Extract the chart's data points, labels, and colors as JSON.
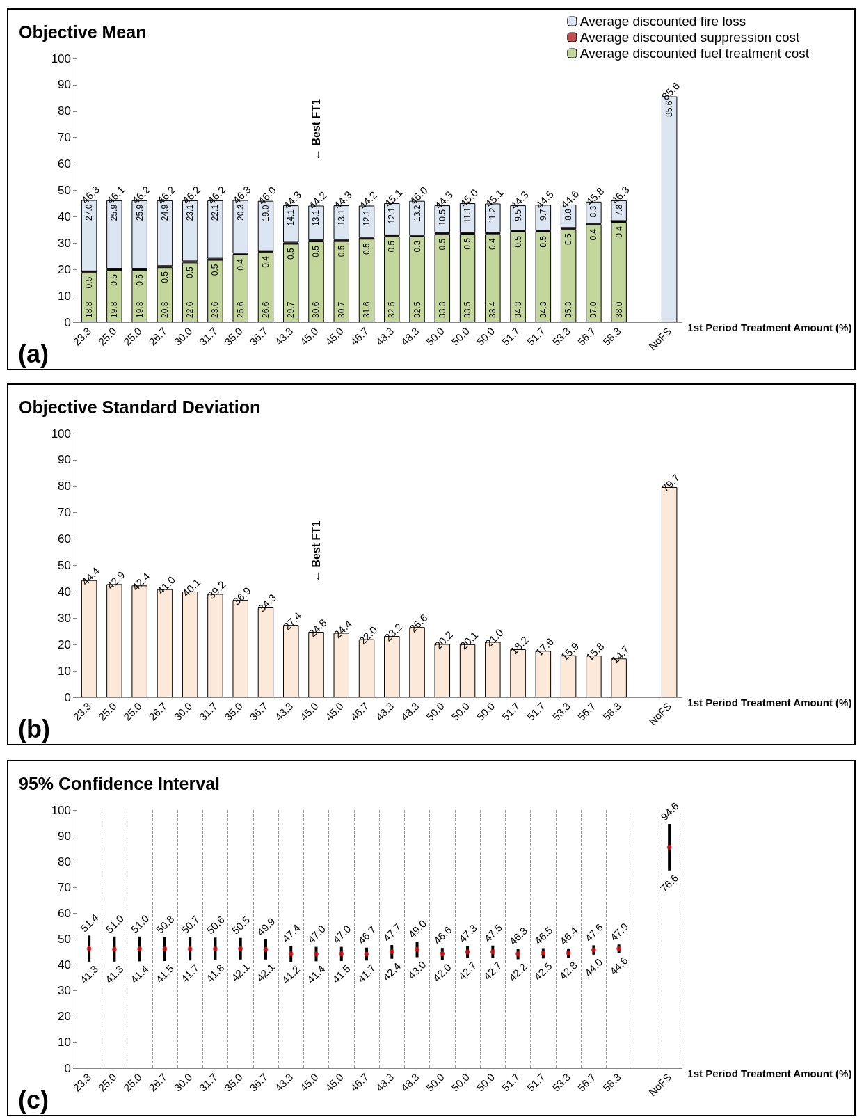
{
  "chart_data": [
    {
      "type": "bar",
      "title": "Objective Mean",
      "xlabel": "1st Period Treatment Amount (%)",
      "stacked": true,
      "legend": "top right",
      "grid": false,
      "categories": [
        "23.3",
        "25.0",
        "25.0",
        "26.7",
        "30.0",
        "31.7",
        "35.0",
        "36.7",
        "43.3",
        "45.0",
        "45.0",
        "46.7",
        "48.3",
        "48.3",
        "50.0",
        "50.0",
        "50.0",
        "51.7",
        "51.7",
        "53.3",
        "56.7",
        "58.3",
        null,
        "NoFS"
      ],
      "series": [
        {
          "name": "Average discounted fuel treatment cost",
          "color": "#c3d69b",
          "values": [
            18.8,
            19.8,
            19.8,
            20.8,
            22.6,
            23.6,
            25.6,
            26.6,
            29.7,
            30.6,
            30.7,
            31.6,
            32.5,
            32.5,
            33.3,
            33.5,
            33.4,
            34.3,
            34.3,
            35.3,
            37.0,
            38.0,
            null,
            null
          ],
          "value_labels": [
            "18.8",
            "19.8",
            "19.8",
            "20.8",
            "22.6",
            "23.6",
            "25.6",
            "26.6",
            "29.7",
            "30.6",
            "30.7",
            "31.6",
            "32.5",
            "32.5",
            "33.3",
            "33.5",
            "33.4",
            "34.3",
            "34.3",
            "35.3",
            "37.0",
            "38.0",
            null,
            null
          ]
        },
        {
          "name": "Average discounted suppression cost",
          "color": "#c0504d",
          "values": [
            0.5,
            0.5,
            0.5,
            0.5,
            0.5,
            0.5,
            0.4,
            0.4,
            0.5,
            0.5,
            0.5,
            0.5,
            0.5,
            0.3,
            0.5,
            0.5,
            0.4,
            0.5,
            0.5,
            0.5,
            0.4,
            0.4,
            null,
            null
          ],
          "value_labels": [
            "0.5",
            "0.5",
            "0.5",
            "0.5",
            "0.5",
            "0.5",
            "0.4",
            "0.4",
            "0.5",
            "0.5",
            "0.5",
            "0.5",
            "0.5",
            "0.3",
            "0.5",
            "0.5",
            "0.4",
            "0.5",
            "0.5",
            "0.5",
            "0.4",
            "0.4",
            null,
            null
          ]
        },
        {
          "name": "Average discounted fire loss",
          "color": "#dce6f2",
          "values": [
            27.0,
            25.9,
            25.9,
            24.9,
            23.1,
            22.1,
            20.3,
            19.0,
            14.1,
            13.1,
            13.1,
            12.1,
            12.1,
            13.2,
            10.5,
            11.1,
            11.2,
            9.5,
            9.7,
            8.8,
            8.3,
            7.8,
            null,
            85.6
          ],
          "value_labels": [
            "27.0",
            "25.9",
            "25.9",
            "24.9",
            "23.1",
            "22.1",
            "20.3",
            "19.0",
            "14.1",
            "13.1",
            "13.1",
            "12.1",
            "12.1",
            "13.2",
            "10.5",
            "11.1",
            "11.2",
            "9.5",
            "9.7",
            "8.8",
            "8.3",
            "7.8",
            null,
            "85.6"
          ]
        }
      ],
      "totals": [
        "46.3",
        "46.1",
        "46.2",
        "46.2",
        "46.2",
        "46.2",
        "46.3",
        "46.0",
        "44.3",
        "44.2",
        "44.3",
        "44.2",
        "45.1",
        "46.0",
        "44.3",
        "45.0",
        "45.1",
        "44.3",
        "44.5",
        "44.6",
        "45.8",
        "46.3",
        null,
        "85.6"
      ],
      "ylim": [
        0,
        100
      ],
      "yticks": [
        0,
        10,
        20,
        30,
        40,
        50,
        60,
        70,
        80,
        90,
        100
      ],
      "annotations": [
        "← Best FT1",
        "(a)"
      ]
    },
    {
      "type": "bar",
      "title": "Objective Standard Deviation",
      "xlabel": "1st Period Treatment Amount (%)",
      "grid": false,
      "categories": [
        "23.3",
        "25.0",
        "25.0",
        "26.7",
        "30.0",
        "31.7",
        "35.0",
        "36.7",
        "43.3",
        "45.0",
        "45.0",
        "46.7",
        "48.3",
        "48.3",
        "50.0",
        "50.0",
        "50.0",
        "51.7",
        "51.7",
        "53.3",
        "56.7",
        "58.3",
        null,
        "NoFS"
      ],
      "series": [
        {
          "color": "#fde9d9",
          "values": [
            44.4,
            42.9,
            42.4,
            41.0,
            40.1,
            39.2,
            36.9,
            34.3,
            27.4,
            24.8,
            24.4,
            22.0,
            23.2,
            26.6,
            20.2,
            20.1,
            21.0,
            18.2,
            17.6,
            15.9,
            15.8,
            14.7,
            null,
            79.7
          ],
          "value_labels": [
            "44.4",
            "42.9",
            "42.4",
            "41.0",
            "40.1",
            "39.2",
            "36.9",
            "34.3",
            "27.4",
            "24.8",
            "24.4",
            "22.0",
            "23.2",
            "26.6",
            "20.2",
            "20.1",
            "21.0",
            "18.2",
            "17.6",
            "15.9",
            "15.8",
            "14.7",
            null,
            "79.7"
          ]
        }
      ],
      "ylim": [
        0,
        100
      ],
      "yticks": [
        0,
        10,
        20,
        30,
        40,
        50,
        60,
        70,
        80,
        90,
        100
      ],
      "annotations": [
        "← Best FT1",
        "(b)"
      ]
    },
    {
      "type": "scatter",
      "title": "95% Confidence Interval",
      "xlabel": "1st Period Treatment Amount (%)",
      "grid": "x",
      "marker": "circle",
      "categories": [
        "23.3",
        "25.0",
        "25.0",
        "26.7",
        "30.0",
        "31.7",
        "35.0",
        "36.7",
        "43.3",
        "45.0",
        "45.0",
        "46.7",
        "48.3",
        "48.3",
        "50.0",
        "50.0",
        "50.0",
        "51.7",
        "51.7",
        "53.3",
        "56.7",
        "58.3",
        null,
        "NoFS"
      ],
      "series": [
        {
          "color": "#e8141a",
          "values": [
            46.3,
            46.1,
            46.2,
            46.2,
            46.2,
            46.2,
            46.3,
            46.0,
            44.3,
            44.2,
            44.3,
            44.2,
            45.1,
            46.0,
            44.3,
            45.0,
            45.1,
            44.3,
            44.5,
            44.6,
            45.8,
            46.3,
            null,
            85.6
          ],
          "errors": [
            [
              41.3,
              51.4
            ],
            [
              41.3,
              51.0
            ],
            [
              41.4,
              51.0
            ],
            [
              41.5,
              50.8
            ],
            [
              41.7,
              50.7
            ],
            [
              41.8,
              50.6
            ],
            [
              42.1,
              50.5
            ],
            [
              42.1,
              49.9
            ],
            [
              41.2,
              47.4
            ],
            [
              41.4,
              47.0
            ],
            [
              41.5,
              47.0
            ],
            [
              41.7,
              46.7
            ],
            [
              42.4,
              47.7
            ],
            [
              43.0,
              49.0
            ],
            [
              42.0,
              46.6
            ],
            [
              42.7,
              47.3
            ],
            [
              42.7,
              47.5
            ],
            [
              42.2,
              46.3
            ],
            [
              42.5,
              46.5
            ],
            [
              42.8,
              46.4
            ],
            [
              44.0,
              47.6
            ],
            [
              44.6,
              47.9
            ],
            null,
            [
              76.6,
              94.6
            ]
          ]
        }
      ],
      "ylim": [
        0,
        100
      ],
      "yticks": [
        0,
        10,
        20,
        30,
        40,
        50,
        60,
        70,
        80,
        90,
        100
      ],
      "annotations": [
        {
          "text": "51.4",
          "x": "23.3",
          "y": 51.4
        },
        {
          "text": "41.3",
          "x": "23.3",
          "y": 41.3
        },
        {
          "text": "51.0",
          "x": "25.0",
          "y": 51.0
        },
        {
          "text": "41.3",
          "x": "25.0",
          "y": 41.3
        },
        {
          "text": "51.0",
          "x": "25.0",
          "y": 51.0
        },
        {
          "text": "41.4",
          "x": "25.0",
          "y": 41.4
        },
        {
          "text": "50.8",
          "x": "26.7",
          "y": 50.8
        },
        {
          "text": "41.5",
          "x": "26.7",
          "y": 41.5
        },
        {
          "text": "50.7",
          "x": "30.0",
          "y": 50.7
        },
        {
          "text": "41.7",
          "x": "30.0",
          "y": 41.7
        },
        {
          "text": "50.6",
          "x": "31.7",
          "y": 50.6
        },
        {
          "text": "41.8",
          "x": "31.7",
          "y": 41.8
        },
        {
          "text": "50.5",
          "x": "35.0",
          "y": 50.5
        },
        {
          "text": "42.1",
          "x": "35.0",
          "y": 42.1
        },
        {
          "text": "49.9",
          "x": "36.7",
          "y": 49.9
        },
        {
          "text": "42.1",
          "x": "36.7",
          "y": 42.1
        },
        {
          "text": "47.4",
          "x": "43.3",
          "y": 47.4
        },
        {
          "text": "41.2",
          "x": "43.3",
          "y": 41.2
        },
        {
          "text": "47.0",
          "x": "45.0",
          "y": 47.0
        },
        {
          "text": "41.4",
          "x": "45.0",
          "y": 41.4
        },
        {
          "text": "47.0",
          "x": "45.0",
          "y": 47.0
        },
        {
          "text": "41.5",
          "x": "45.0",
          "y": 41.5
        },
        {
          "text": "46.7",
          "x": "46.7",
          "y": 46.7
        },
        {
          "text": "41.7",
          "x": "46.7",
          "y": 41.7
        },
        {
          "text": "47.7",
          "x": "48.3",
          "y": 47.7
        },
        {
          "text": "42.4",
          "x": "48.3",
          "y": 42.4
        },
        {
          "text": "49.0",
          "x": "48.3",
          "y": 49.0
        },
        {
          "text": "43.0",
          "x": "48.3",
          "y": 43.0
        },
        {
          "text": "46.6",
          "x": "50.0",
          "y": 46.6
        },
        {
          "text": "42.0",
          "x": "50.0",
          "y": 42.0
        },
        {
          "text": "47.3",
          "x": "50.0",
          "y": 47.3
        },
        {
          "text": "42.7",
          "x": "50.0",
          "y": 42.7
        },
        {
          "text": "46.3",
          "x": "51.7",
          "y": 46.3
        },
        {
          "text": "42.2",
          "x": "51.7",
          "y": 42.2
        },
        {
          "text": "46.5",
          "x": "51.7",
          "y": 46.5
        },
        {
          "text": "42.5",
          "x": "51.7",
          "y": 42.5
        },
        {
          "text": "46.4",
          "x": "53.3",
          "y": 46.4
        },
        {
          "text": "42.8",
          "x": "53.3",
          "y": 42.8
        },
        {
          "text": "47.6",
          "x": "56.7",
          "y": 47.6
        },
        {
          "text": "44.0",
          "x": "56.7",
          "y": 44.0
        },
        {
          "text": "47.9",
          "x": "58.3",
          "y": 47.9
        },
        {
          "text": "44.6",
          "x": "58.3",
          "y": 44.6
        },
        {
          "text": "94.6",
          "x": "NoFS",
          "y": 94.6
        },
        {
          "text": "76.6",
          "x": "NoFS",
          "y": 76.6
        },
        "47.5",
        "42.7",
        "(c)"
      ]
    }
  ]
}
